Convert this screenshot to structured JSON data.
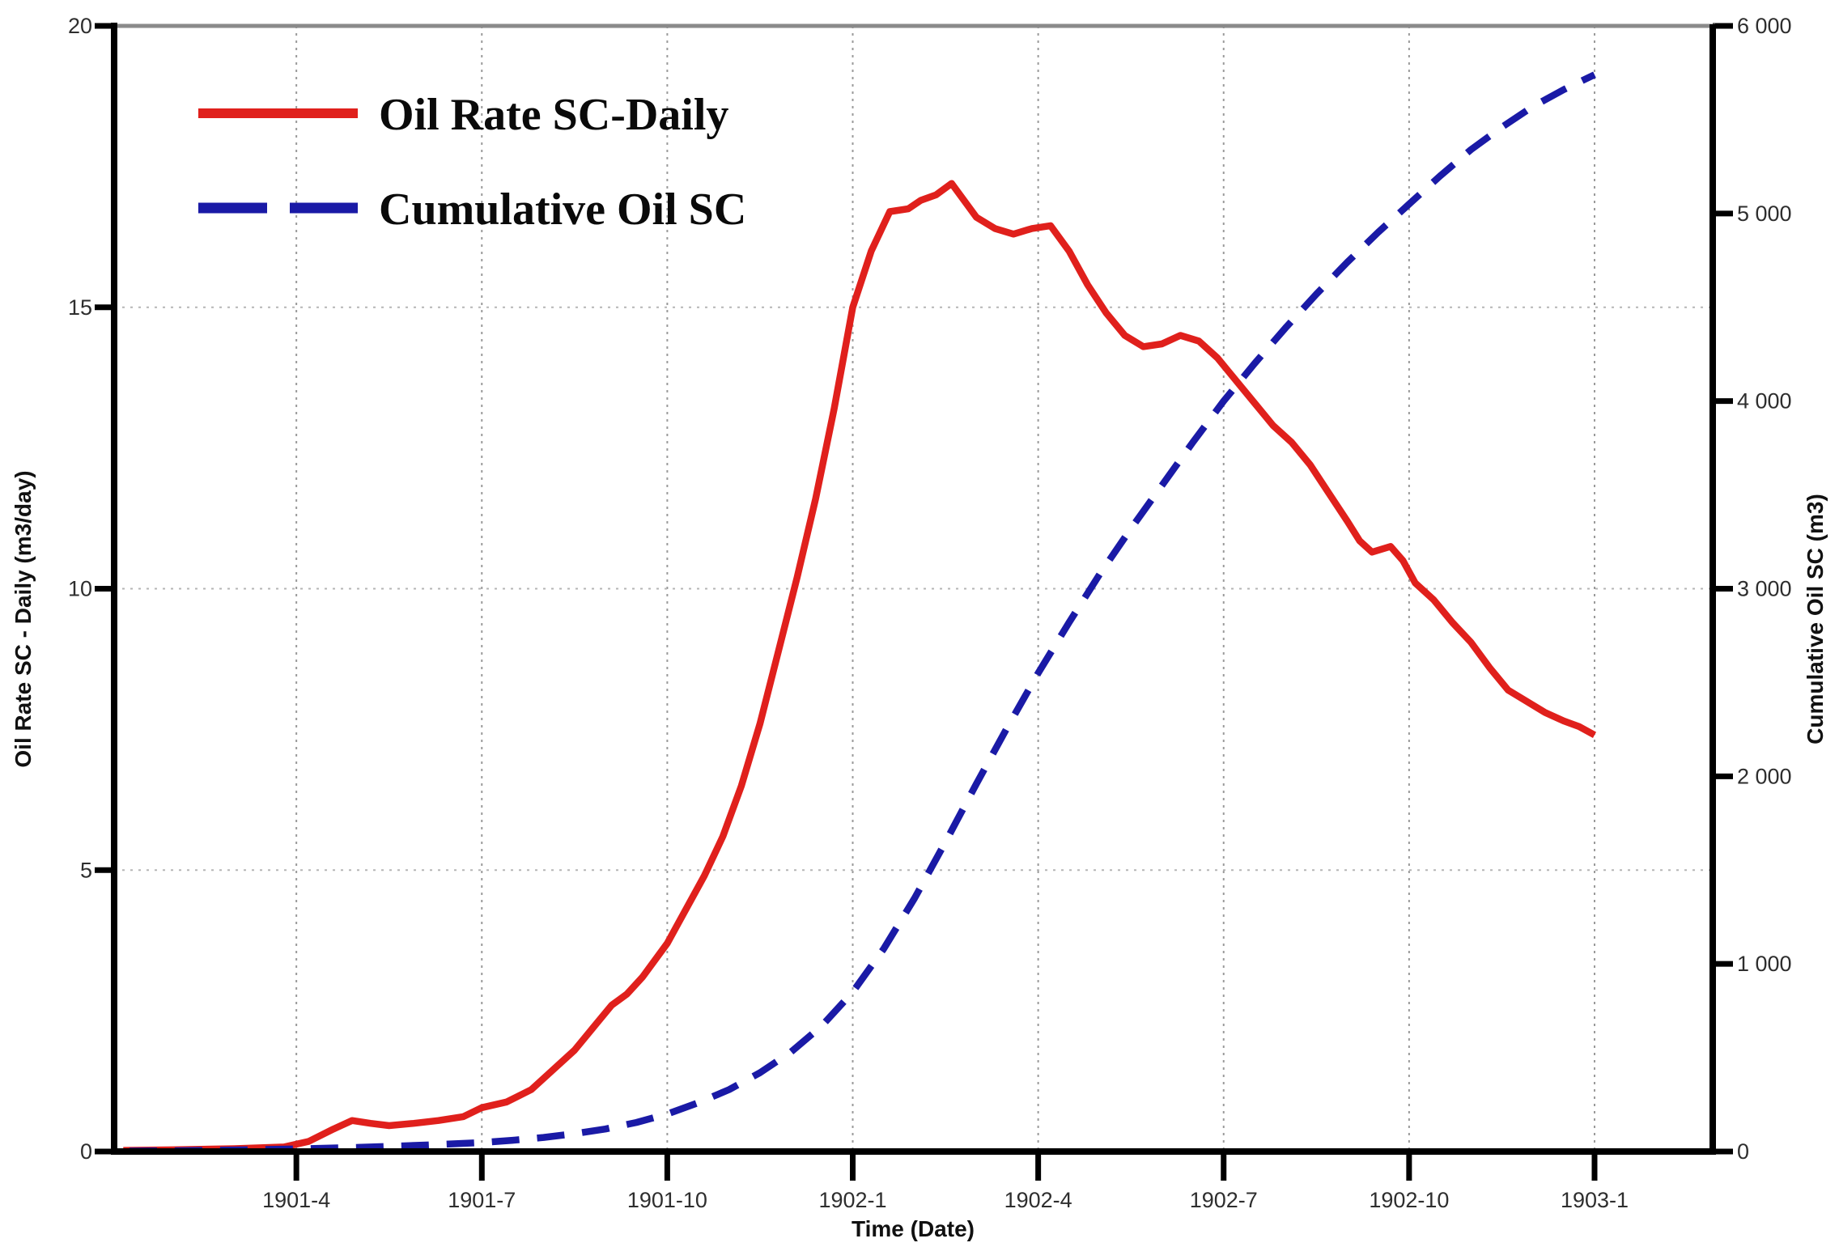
{
  "chart_data": {
    "type": "line",
    "title": "",
    "xlabel": "Time (Date)",
    "ylabel_left": "Oil Rate SC - Daily (m3/day)",
    "ylabel_right": "Cumulative Oil SC (m3)",
    "x_ticks": [
      "1901-4",
      "1901-7",
      "1901-10",
      "1902-1",
      "1902-4",
      "1902-7",
      "1902-10",
      "1903-1"
    ],
    "x_tick_months": [
      3,
      6,
      9,
      12,
      15,
      18,
      21,
      24
    ],
    "x_axis_note": "x expressed in months since 1901-1",
    "x_range_months": [
      0,
      26.1
    ],
    "y_left": {
      "min": 0,
      "max": 20,
      "ticks": [
        0,
        5,
        10,
        15,
        20
      ],
      "gridline_values": [
        5,
        10,
        15
      ]
    },
    "y_right": {
      "min": 0,
      "max": 6000,
      "tick_values": [
        0,
        1000,
        2000,
        3000,
        4000,
        5000,
        6000
      ],
      "tick_labels": [
        "0",
        "1 000",
        "2 000",
        "3 000",
        "4 000",
        "5 000",
        "6 000"
      ]
    },
    "grid": {
      "vertical": true,
      "horizontal": true,
      "style": "dotted"
    },
    "legend_position": "top-left-inside",
    "colors": {
      "oil_rate": "#e0201c",
      "cumulative": "#1a1aa6",
      "axis": "#000000",
      "top_border": "#8a8a8a",
      "grid": "#9a9a9a"
    },
    "series": [
      {
        "name": "Oil Rate SC-Daily",
        "axis": "left",
        "units": "m3/day",
        "color": "#e0201c",
        "style": "solid",
        "points": [
          [
            0.2,
            0.02
          ],
          [
            1,
            0.03
          ],
          [
            2,
            0.05
          ],
          [
            2.8,
            0.08
          ],
          [
            3.2,
            0.18
          ],
          [
            3.6,
            0.4
          ],
          [
            3.9,
            0.55
          ],
          [
            4.2,
            0.5
          ],
          [
            4.5,
            0.46
          ],
          [
            4.9,
            0.5
          ],
          [
            5.3,
            0.55
          ],
          [
            5.7,
            0.62
          ],
          [
            6,
            0.78
          ],
          [
            6.4,
            0.88
          ],
          [
            6.8,
            1.1
          ],
          [
            7.1,
            1.4
          ],
          [
            7.5,
            1.8
          ],
          [
            7.8,
            2.2
          ],
          [
            8.1,
            2.6
          ],
          [
            8.35,
            2.8
          ],
          [
            8.6,
            3.1
          ],
          [
            9,
            3.7
          ],
          [
            9.3,
            4.3
          ],
          [
            9.6,
            4.9
          ],
          [
            9.9,
            5.6
          ],
          [
            10.2,
            6.5
          ],
          [
            10.5,
            7.6
          ],
          [
            10.8,
            8.9
          ],
          [
            11.1,
            10.2
          ],
          [
            11.4,
            11.6
          ],
          [
            11.7,
            13.2
          ],
          [
            12,
            15
          ],
          [
            12.3,
            16
          ],
          [
            12.6,
            16.7
          ],
          [
            12.9,
            16.75
          ],
          [
            13.1,
            16.9
          ],
          [
            13.35,
            17
          ],
          [
            13.6,
            17.2
          ],
          [
            13.8,
            16.9
          ],
          [
            14,
            16.6
          ],
          [
            14.3,
            16.4
          ],
          [
            14.6,
            16.3
          ],
          [
            14.9,
            16.4
          ],
          [
            15.2,
            16.45
          ],
          [
            15.5,
            16
          ],
          [
            15.8,
            15.4
          ],
          [
            16.1,
            14.9
          ],
          [
            16.4,
            14.5
          ],
          [
            16.7,
            14.3
          ],
          [
            17,
            14.35
          ],
          [
            17.3,
            14.5
          ],
          [
            17.6,
            14.4
          ],
          [
            17.9,
            14.1
          ],
          [
            18.2,
            13.7
          ],
          [
            18.5,
            13.3
          ],
          [
            18.8,
            12.9
          ],
          [
            19.1,
            12.6
          ],
          [
            19.4,
            12.2
          ],
          [
            19.7,
            11.7
          ],
          [
            20,
            11.2
          ],
          [
            20.2,
            10.85
          ],
          [
            20.4,
            10.65
          ],
          [
            20.7,
            10.75
          ],
          [
            20.9,
            10.5
          ],
          [
            21.1,
            10.1
          ],
          [
            21.4,
            9.8
          ],
          [
            21.7,
            9.4
          ],
          [
            22,
            9.05
          ],
          [
            22.3,
            8.6
          ],
          [
            22.6,
            8.2
          ],
          [
            22.9,
            8
          ],
          [
            23.2,
            7.8
          ],
          [
            23.5,
            7.65
          ],
          [
            23.75,
            7.55
          ],
          [
            24,
            7.4
          ]
        ]
      },
      {
        "name": "Cumulative Oil SC",
        "axis": "right",
        "units": "m3",
        "color": "#1a1aa6",
        "style": "dashed",
        "points": [
          [
            0.3,
            2
          ],
          [
            1,
            4
          ],
          [
            2,
            8
          ],
          [
            3,
            14
          ],
          [
            4,
            22
          ],
          [
            5,
            33
          ],
          [
            6,
            48
          ],
          [
            6.5,
            60
          ],
          [
            7,
            75
          ],
          [
            7.5,
            95
          ],
          [
            8,
            120
          ],
          [
            8.5,
            155
          ],
          [
            9,
            200
          ],
          [
            9.5,
            260
          ],
          [
            10,
            330
          ],
          [
            10.5,
            420
          ],
          [
            11,
            530
          ],
          [
            11.5,
            670
          ],
          [
            12,
            850
          ],
          [
            12.5,
            1080
          ],
          [
            13,
            1350
          ],
          [
            13.5,
            1650
          ],
          [
            14,
            1960
          ],
          [
            14.5,
            2260
          ],
          [
            15,
            2550
          ],
          [
            15.5,
            2820
          ],
          [
            16,
            3080
          ],
          [
            16.5,
            3320
          ],
          [
            17,
            3550
          ],
          [
            17.5,
            3780
          ],
          [
            18,
            4000
          ],
          [
            18.5,
            4200
          ],
          [
            19,
            4390
          ],
          [
            19.5,
            4570
          ],
          [
            20,
            4740
          ],
          [
            20.5,
            4900
          ],
          [
            21,
            5050
          ],
          [
            21.5,
            5200
          ],
          [
            22,
            5340
          ],
          [
            22.5,
            5460
          ],
          [
            23,
            5570
          ],
          [
            23.5,
            5660
          ],
          [
            24,
            5740
          ]
        ]
      }
    ]
  }
}
